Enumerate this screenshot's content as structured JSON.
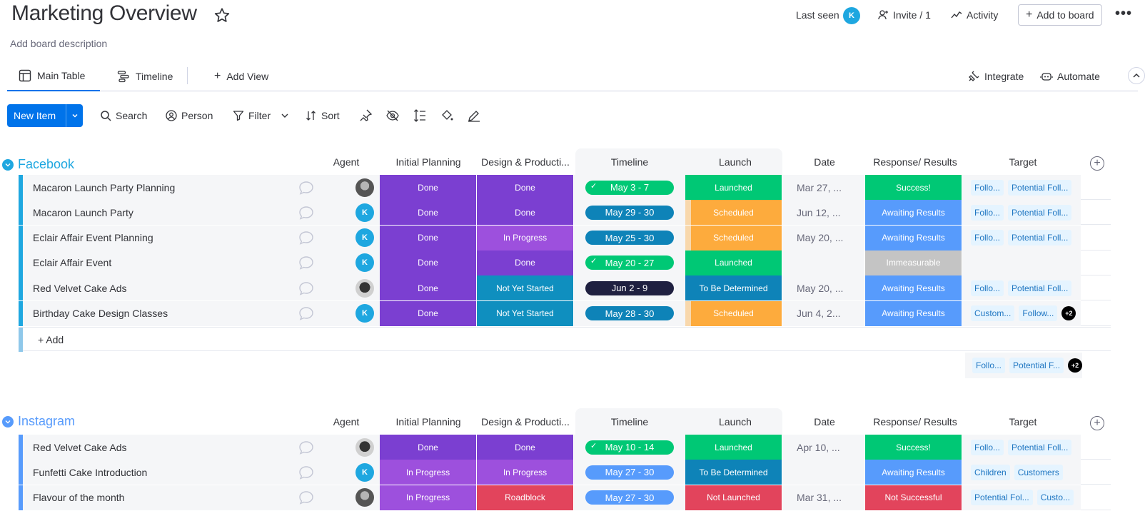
{
  "header": {
    "title": "Marketing Overview",
    "description": "Add board description",
    "last_seen_label": "Last seen",
    "last_seen_avatar": "K",
    "invite_label": "Invite / 1",
    "activity_label": "Activity",
    "add_to_board_label": "Add to board"
  },
  "views": {
    "main_table": "Main Table",
    "timeline": "Timeline",
    "add_view": "Add View",
    "integrate": "Integrate",
    "automate": "Automate"
  },
  "toolbar": {
    "new_item": "New Item",
    "search": "Search",
    "person": "Person",
    "filter": "Filter",
    "sort": "Sort"
  },
  "columns": {
    "agent": "Agent",
    "initial_planning": "Initial Planning",
    "design": "Design & Producti...",
    "timeline": "Timeline",
    "launch": "Launch",
    "date": "Date",
    "response": "Response/ Results",
    "target": "Target"
  },
  "colors": {
    "done": "#7b3fd1",
    "in_progress": "#9d50dd",
    "not_yet_started": "#0f8fbf",
    "roadblock": "#e2445c",
    "launched": "#00c875",
    "scheduled": "#fdab3d",
    "to_be_determined": "#0e83b8",
    "not_launched": "#e2445c",
    "success": "#00c875",
    "awaiting": "#579bfc",
    "immeasurable": "#c4c4c4",
    "not_successful": "#e2445c",
    "facebook": "#1ea7e0",
    "instagram": "#579bfc"
  },
  "groups": {
    "facebook": {
      "title": "Facebook",
      "add_label": "+ Add",
      "rows": [
        {
          "name": "Macaron Launch Party Planning",
          "agent": "photo",
          "initial": "Done",
          "design": "Done",
          "timeline": "May 3 - 7",
          "timeline_check": true,
          "launch": "Launched",
          "date": "Mar 27, ...",
          "response": "Success!",
          "targets": [
            "Follo...",
            "Potential Foll..."
          ],
          "extra": ""
        },
        {
          "name": "Macaron Launch Party",
          "agent": "K",
          "initial": "Done",
          "design": "Done",
          "timeline": "May 29 - 30",
          "timeline_check": false,
          "launch": "Scheduled",
          "date": "Jun 12, ...",
          "response": "Awaiting Results",
          "targets": [
            "Follo...",
            "Potential Foll..."
          ],
          "extra": ""
        },
        {
          "name": "Eclair Affair Event Planning",
          "agent": "K",
          "initial": "Done",
          "design": "In Progress",
          "timeline": "May 25 - 30",
          "timeline_check": false,
          "launch": "Scheduled",
          "date": "May 20, ...",
          "response": "Awaiting Results",
          "targets": [
            "Follo...",
            "Potential Foll..."
          ],
          "extra": ""
        },
        {
          "name": "Eclair Affair Event",
          "agent": "K",
          "initial": "Done",
          "design": "Done",
          "timeline": "May 20 - 27",
          "timeline_check": true,
          "launch": "Launched",
          "date": "",
          "response": "Immeasurable",
          "targets": [],
          "extra": ""
        },
        {
          "name": "Red Velvet Cake Ads",
          "agent": "dark",
          "initial": "Done",
          "design": "Not Yet Started",
          "timeline": "Jun 2 - 9",
          "timeline_check": false,
          "launch": "To Be Determined",
          "date": "May 20, ...",
          "response": "Awaiting Results",
          "targets": [
            "Follo...",
            "Potential Foll..."
          ],
          "extra": ""
        },
        {
          "name": "Birthday Cake Design Classes",
          "agent": "K",
          "initial": "Done",
          "design": "Not Yet Started",
          "timeline": "May 28 - 30",
          "timeline_check": false,
          "launch": "Scheduled",
          "date": "Jun 4, 2...",
          "response": "Awaiting Results",
          "targets": [
            "Custom...",
            "Follow..."
          ],
          "extra": "+2"
        }
      ],
      "summary_targets": [
        "Follo...",
        "Potential F..."
      ],
      "summary_extra": "+2"
    },
    "instagram": {
      "title": "Instagram",
      "rows": [
        {
          "name": "Red Velvet Cake Ads",
          "agent": "dark",
          "initial": "Done",
          "design": "Done",
          "timeline": "May 10 - 14",
          "timeline_check": true,
          "launch": "Launched",
          "date": "Apr 10, ...",
          "response": "Success!",
          "targets": [
            "Follo...",
            "Potential Foll..."
          ],
          "extra": ""
        },
        {
          "name": "Funfetti Cake Introduction",
          "agent": "K",
          "initial": "In Progress",
          "design": "In Progress",
          "timeline": "May 27 - 30",
          "timeline_check": false,
          "launch": "To Be Determined",
          "date": "",
          "response": "Awaiting Results",
          "targets": [
            "Children",
            "Customers"
          ],
          "extra": ""
        },
        {
          "name": "Flavour of the month",
          "agent": "photo",
          "initial": "In Progress",
          "design": "Roadblock",
          "timeline": "May 27 - 30",
          "timeline_check": false,
          "launch": "Not Launched",
          "date": "Mar 31, ...",
          "response": "Not Successful",
          "targets": [
            "Potential Fol...",
            "Custo..."
          ],
          "extra": ""
        }
      ]
    }
  }
}
